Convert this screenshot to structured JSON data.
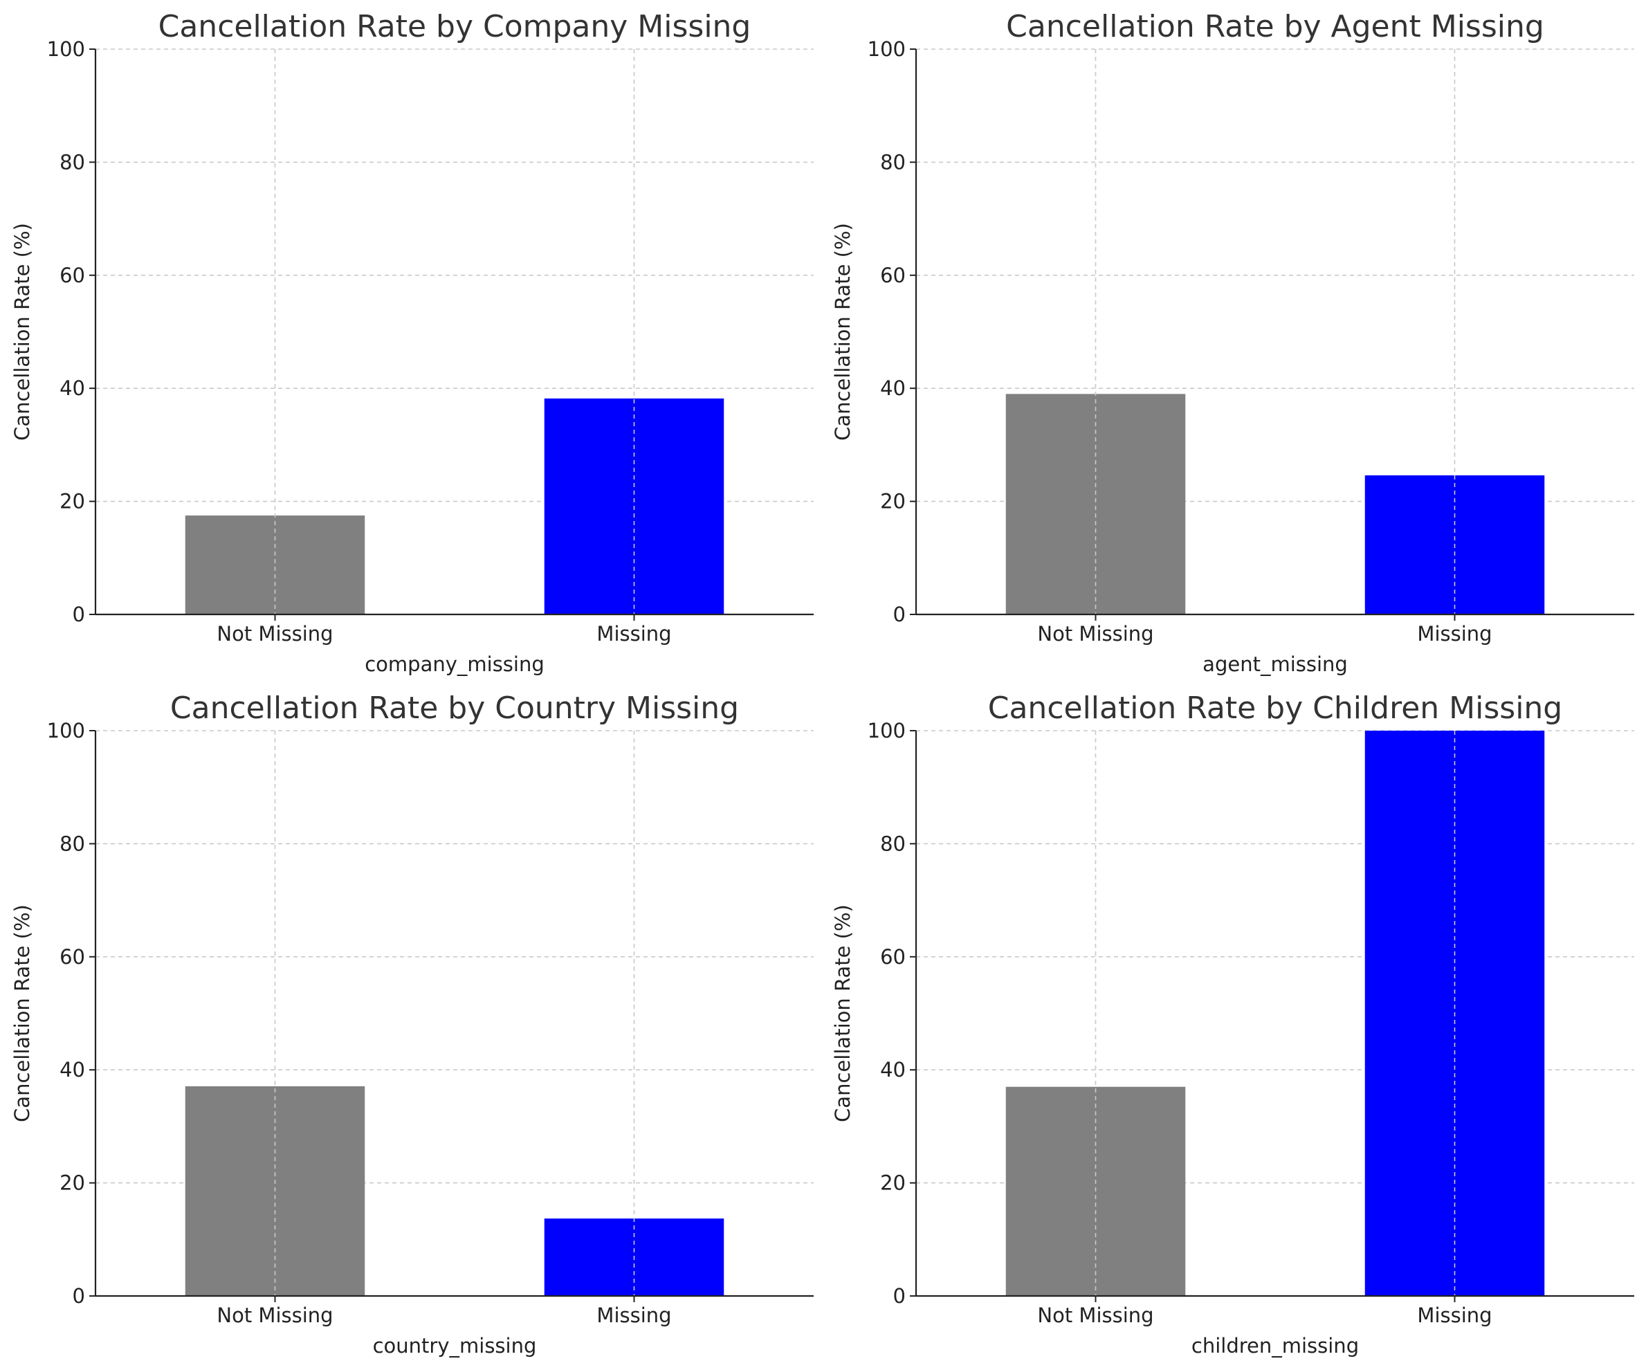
{
  "chart_data": [
    {
      "type": "bar",
      "title": "Cancellation Rate by Company Missing",
      "categories": [
        "Not Missing",
        "Missing"
      ],
      "values": [
        17.5,
        38.2
      ],
      "colors": [
        "#808080",
        "#0000ff"
      ],
      "xlabel": "company_missing",
      "ylabel": "Cancellation Rate (%)",
      "ylim": [
        0,
        100
      ],
      "yticks": [
        0,
        20,
        40,
        60,
        80,
        100
      ],
      "grid": true
    },
    {
      "type": "bar",
      "title": "Cancellation Rate by Agent Missing",
      "categories": [
        "Not Missing",
        "Missing"
      ],
      "values": [
        39.0,
        24.6
      ],
      "colors": [
        "#808080",
        "#0000ff"
      ],
      "xlabel": "agent_missing",
      "ylabel": "Cancellation Rate (%)",
      "ylim": [
        0,
        100
      ],
      "yticks": [
        0,
        20,
        40,
        60,
        80,
        100
      ],
      "grid": true
    },
    {
      "type": "bar",
      "title": "Cancellation Rate by Country Missing",
      "categories": [
        "Not Missing",
        "Missing"
      ],
      "values": [
        37.1,
        13.7
      ],
      "colors": [
        "#808080",
        "#0000ff"
      ],
      "xlabel": "country_missing",
      "ylabel": "Cancellation Rate (%)",
      "ylim": [
        0,
        100
      ],
      "yticks": [
        0,
        20,
        40,
        60,
        80,
        100
      ],
      "grid": true
    },
    {
      "type": "bar",
      "title": "Cancellation Rate by Children Missing",
      "categories": [
        "Not Missing",
        "Missing"
      ],
      "values": [
        37.0,
        100.0
      ],
      "colors": [
        "#808080",
        "#0000ff"
      ],
      "xlabel": "children_missing",
      "ylabel": "Cancellation Rate (%)",
      "ylim": [
        0,
        100
      ],
      "yticks": [
        0,
        20,
        40,
        60,
        80,
        100
      ],
      "grid": true
    }
  ]
}
